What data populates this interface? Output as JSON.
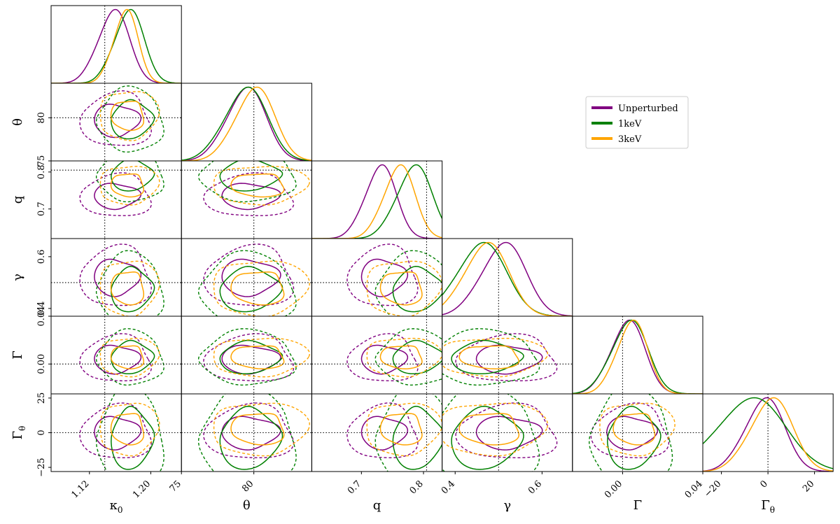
{
  "chart_data": {
    "type": "corner",
    "parameters": [
      {
        "key": "kappa0",
        "label": "κ",
        "sub": "0",
        "range": [
          1.07,
          1.24
        ],
        "truth": 1.14,
        "ticks": [
          1.12,
          1.2
        ],
        "tick_labels": [
          "1.12",
          "1.20"
        ]
      },
      {
        "key": "theta",
        "label": "θ",
        "sub": "",
        "range": [
          75,
          84
        ],
        "truth": 80,
        "ticks": [
          75,
          80
        ],
        "tick_labels": [
          "75",
          "80"
        ]
      },
      {
        "key": "q",
        "label": "q",
        "sub": "",
        "range": [
          0.62,
          0.83
        ],
        "truth": 0.805,
        "ticks": [
          0.7,
          0.8
        ],
        "tick_labels": [
          "0.7",
          "0.8"
        ]
      },
      {
        "key": "gamma",
        "label": "γ",
        "sub": "",
        "range": [
          0.37,
          0.67
        ],
        "truth": 0.5,
        "ticks": [
          0.4,
          0.6
        ],
        "tick_labels": [
          "0.4",
          "0.6"
        ]
      },
      {
        "key": "Gamma",
        "label": "Γ",
        "sub": "",
        "range": [
          -0.025,
          0.04
        ],
        "truth": 0.0,
        "ticks": [
          0.0,
          0.04
        ],
        "tick_labels": [
          "0.00",
          "0.04"
        ]
      },
      {
        "key": "Gamma_theta",
        "label": "Γ",
        "sub": "θ",
        "range": [
          -28,
          28
        ],
        "truth": 0,
        "ticks": [
          -25,
          0,
          25
        ],
        "tick_labels": [
          "−25",
          "0",
          "25"
        ]
      }
    ],
    "diag_x_ticks": {
      "5": {
        "ticks": [
          -20,
          0,
          20
        ],
        "tick_labels": [
          "−20",
          "0",
          "20"
        ]
      }
    },
    "series": [
      {
        "name": "Unperturbed",
        "color": "#800080",
        "means": [
          1.155,
          79.7,
          0.735,
          0.52,
          0.004,
          0
        ],
        "sigmas": [
          0.018,
          1.2,
          0.022,
          0.045,
          0.0075,
          7.5
        ],
        "offsets": [
          [
            0.08,
            0.05
          ],
          [
            -0.06,
            0.08
          ],
          [
            0.06,
            -0.06
          ],
          [
            -0.05,
            -0.05
          ]
        ]
      },
      {
        "name": "1keV",
        "color": "#008000",
        "means": [
          1.175,
          79.7,
          0.79,
          0.47,
          0.005,
          -5
        ],
        "sigmas": [
          0.017,
          1.3,
          0.025,
          0.05,
          0.008,
          13
        ],
        "offsets": [
          [
            0.06,
            -0.08
          ],
          [
            -0.08,
            0.05
          ],
          [
            0.05,
            0.07
          ],
          [
            -0.04,
            -0.06
          ]
        ]
      },
      {
        "name": "3keV",
        "color": "#FFA500",
        "means": [
          1.17,
          80.3,
          0.765,
          0.48,
          0.006,
          3
        ],
        "sigmas": [
          0.014,
          1.2,
          0.022,
          0.045,
          0.0068,
          8
        ],
        "offsets": [
          [
            -0.05,
            0.07
          ],
          [
            0.07,
            -0.05
          ],
          [
            -0.06,
            -0.05
          ],
          [
            0.05,
            0.06
          ]
        ]
      }
    ],
    "contour_levels": [
      "1-sigma solid",
      "2-sigma dashed"
    ],
    "truth_lines": "dotted black",
    "legend_position": "upper-right",
    "grid": false
  }
}
